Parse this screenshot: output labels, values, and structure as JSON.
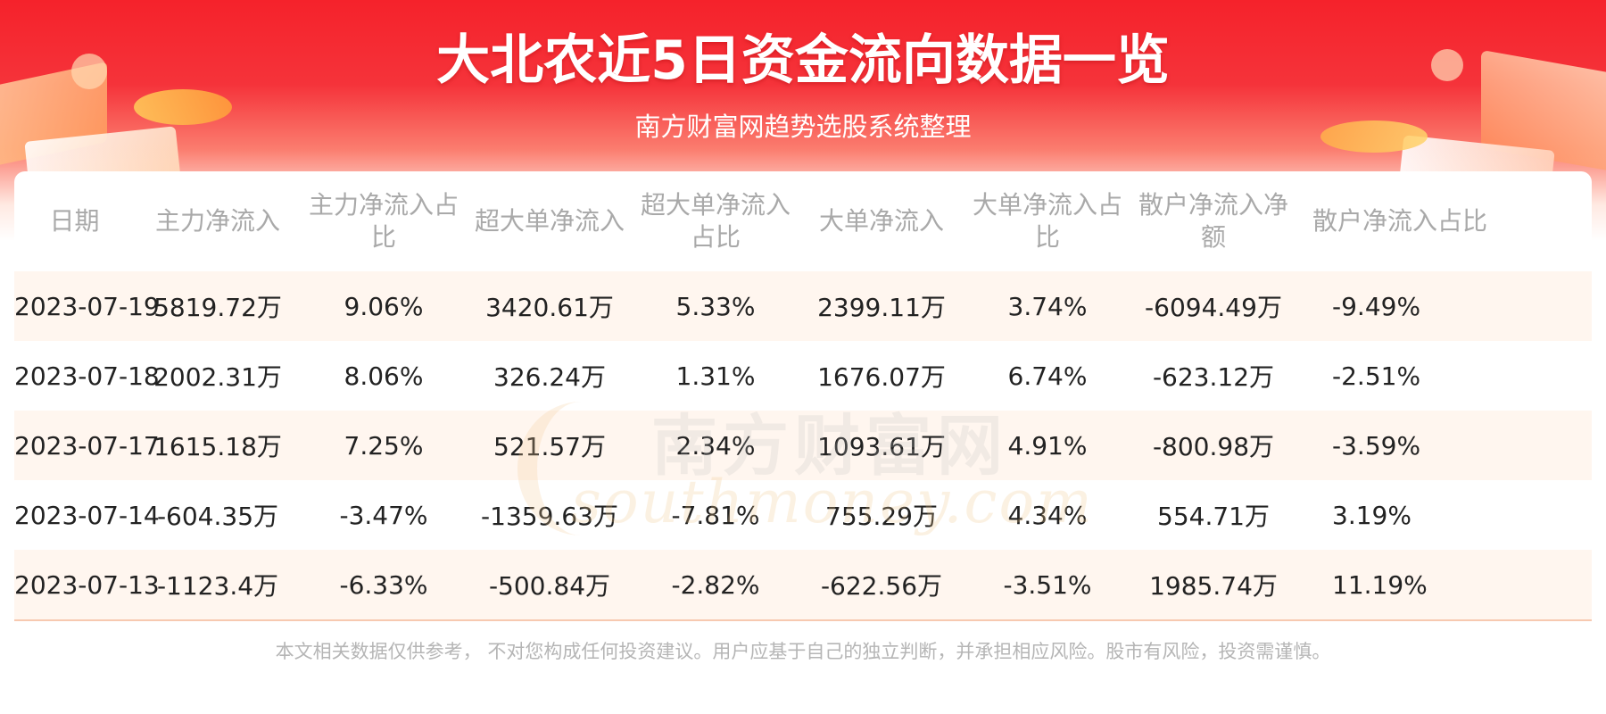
{
  "banner": {
    "title": "大北农近5日资金流向数据一览",
    "subtitle": "南方财富网趋势选股系统整理"
  },
  "watermark": {
    "cn": "南方财富网",
    "en": "southmoney.com"
  },
  "table": {
    "headers": [
      "日期",
      "主力净流入",
      "主力净流入占比",
      "超大单净流入",
      "超大单净流入占比",
      "大单净流入",
      "大单净流入占比",
      "散户净流入净额",
      "散户净流入占比"
    ],
    "rows": [
      [
        "2023-07-19",
        "5819.72万",
        "9.06%",
        "3420.61万",
        "5.33%",
        "2399.11万",
        "3.74%",
        "-6094.49万",
        "-9.49%"
      ],
      [
        "2023-07-18",
        "2002.31万",
        "8.06%",
        "326.24万",
        "1.31%",
        "1676.07万",
        "6.74%",
        "-623.12万",
        "-2.51%"
      ],
      [
        "2023-07-17",
        "1615.18万",
        "7.25%",
        "521.57万",
        "2.34%",
        "1093.61万",
        "4.91%",
        "-800.98万",
        "-3.59%"
      ],
      [
        "2023-07-14",
        "-604.35万",
        "-3.47%",
        "-1359.63万",
        "-7.81%",
        "755.29万",
        "4.34%",
        "554.71万",
        "3.19%"
      ],
      [
        "2023-07-13",
        "-1123.4万",
        "-6.33%",
        "-500.84万",
        "-2.82%",
        "-622.56万",
        "-3.51%",
        "1985.74万",
        "11.19%"
      ]
    ]
  },
  "footer": {
    "disclaimer": "本文相关数据仅供参考， 不对您构成任何投资建议。用户应基于自己的独立判断，并承担相应风险。股市有风险，投资需谨慎。"
  },
  "colors": {
    "banner_red": "#f5222b",
    "row_stripe": "#fff4ec",
    "header_text": "#a9a9a9",
    "cell_text": "#222222"
  }
}
